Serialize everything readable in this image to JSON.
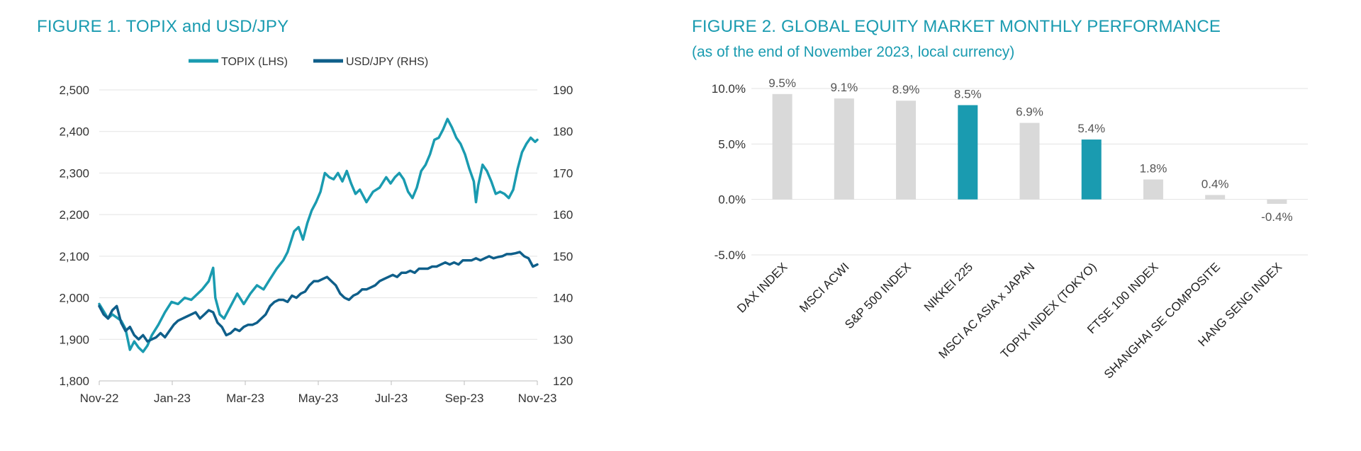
{
  "figure1": {
    "title": "FIGURE 1. TOPIX and USD/JPY",
    "chart_data": {
      "type": "line",
      "title": "FIGURE 1. TOPIX and USD/JPY",
      "x_labels": [
        "Nov-22",
        "Jan-23",
        "Mar-23",
        "May-23",
        "Jul-23",
        "Sep-23",
        "Nov-23"
      ],
      "y_left": {
        "label": "TOPIX (LHS)",
        "range": [
          1800,
          2500
        ],
        "ticks": [
          "1,800",
          "1,900",
          "2,000",
          "2,100",
          "2,200",
          "2,300",
          "2,400",
          "2,500"
        ]
      },
      "y_right": {
        "label": "USD/JPY (RHS)",
        "range": [
          120,
          190
        ],
        "ticks": [
          "120",
          "130",
          "140",
          "150",
          "160",
          "170",
          "180",
          "190"
        ]
      },
      "series": [
        {
          "name": "TOPIX (LHS)",
          "axis": "left",
          "color": "#1a9bb0",
          "points": [
            [
              0,
              1985
            ],
            [
              0.02,
              1950
            ],
            [
              0.03,
              1960
            ],
            [
              0.05,
              1945
            ],
            [
              0.06,
              1925
            ],
            [
              0.065,
              1900
            ],
            [
              0.07,
              1875
            ],
            [
              0.08,
              1895
            ],
            [
              0.09,
              1880
            ],
            [
              0.1,
              1870
            ],
            [
              0.11,
              1885
            ],
            [
              0.12,
              1910
            ],
            [
              0.135,
              1935
            ],
            [
              0.15,
              1965
            ],
            [
              0.165,
              1990
            ],
            [
              0.18,
              1985
            ],
            [
              0.195,
              2000
            ],
            [
              0.21,
              1995
            ],
            [
              0.22,
              2005
            ],
            [
              0.235,
              2020
            ],
            [
              0.25,
              2040
            ],
            [
              0.26,
              2072
            ],
            [
              0.265,
              2000
            ],
            [
              0.275,
              1960
            ],
            [
              0.285,
              1950
            ],
            [
              0.3,
              1980
            ],
            [
              0.315,
              2010
            ],
            [
              0.33,
              1985
            ],
            [
              0.345,
              2010
            ],
            [
              0.36,
              2030
            ],
            [
              0.375,
              2020
            ],
            [
              0.39,
              2045
            ],
            [
              0.405,
              2070
            ],
            [
              0.42,
              2090
            ],
            [
              0.43,
              2110
            ],
            [
              0.445,
              2160
            ],
            [
              0.455,
              2170
            ],
            [
              0.465,
              2140
            ],
            [
              0.475,
              2180
            ],
            [
              0.485,
              2210
            ],
            [
              0.495,
              2230
            ],
            [
              0.505,
              2255
            ],
            [
              0.515,
              2300
            ],
            [
              0.525,
              2290
            ],
            [
              0.535,
              2285
            ],
            [
              0.545,
              2300
            ],
            [
              0.555,
              2280
            ],
            [
              0.565,
              2305
            ],
            [
              0.575,
              2275
            ],
            [
              0.585,
              2250
            ],
            [
              0.595,
              2260
            ],
            [
              0.61,
              2230
            ],
            [
              0.625,
              2255
            ],
            [
              0.64,
              2265
            ],
            [
              0.655,
              2290
            ],
            [
              0.665,
              2275
            ],
            [
              0.675,
              2290
            ],
            [
              0.685,
              2300
            ],
            [
              0.695,
              2285
            ],
            [
              0.705,
              2255
            ],
            [
              0.715,
              2240
            ],
            [
              0.725,
              2265
            ],
            [
              0.735,
              2305
            ],
            [
              0.745,
              2320
            ],
            [
              0.755,
              2345
            ],
            [
              0.765,
              2380
            ],
            [
              0.775,
              2385
            ],
            [
              0.785,
              2405
            ],
            [
              0.795,
              2430
            ],
            [
              0.805,
              2410
            ],
            [
              0.815,
              2385
            ],
            [
              0.825,
              2370
            ],
            [
              0.835,
              2345
            ],
            [
              0.845,
              2310
            ],
            [
              0.855,
              2280
            ],
            [
              0.86,
              2230
            ],
            [
              0.865,
              2270
            ],
            [
              0.875,
              2320
            ],
            [
              0.885,
              2305
            ],
            [
              0.895,
              2280
            ],
            [
              0.905,
              2250
            ],
            [
              0.915,
              2255
            ],
            [
              0.925,
              2250
            ],
            [
              0.935,
              2240
            ],
            [
              0.945,
              2260
            ],
            [
              0.955,
              2310
            ],
            [
              0.965,
              2350
            ],
            [
              0.975,
              2370
            ],
            [
              0.985,
              2385
            ],
            [
              0.995,
              2375
            ],
            [
              1.0,
              2380
            ]
          ]
        },
        {
          "name": "USD/JPY (RHS)",
          "axis": "right",
          "color": "#0f5f8a",
          "points": [
            [
              0,
              138
            ],
            [
              0.01,
              136
            ],
            [
              0.02,
              135
            ],
            [
              0.03,
              137
            ],
            [
              0.04,
              138
            ],
            [
              0.05,
              134
            ],
            [
              0.06,
              132
            ],
            [
              0.07,
              133
            ],
            [
              0.08,
              131
            ],
            [
              0.09,
              130
            ],
            [
              0.1,
              131
            ],
            [
              0.11,
              129.5
            ],
            [
              0.12,
              130
            ],
            [
              0.13,
              130.5
            ],
            [
              0.14,
              131.5
            ],
            [
              0.15,
              130.5
            ],
            [
              0.16,
              132
            ],
            [
              0.17,
              133.5
            ],
            [
              0.18,
              134.5
            ],
            [
              0.19,
              135
            ],
            [
              0.2,
              135.5
            ],
            [
              0.21,
              136
            ],
            [
              0.22,
              136.5
            ],
            [
              0.23,
              135
            ],
            [
              0.24,
              136
            ],
            [
              0.25,
              137
            ],
            [
              0.26,
              136.5
            ],
            [
              0.27,
              134
            ],
            [
              0.28,
              133
            ],
            [
              0.29,
              131
            ],
            [
              0.3,
              131.5
            ],
            [
              0.31,
              132.5
            ],
            [
              0.32,
              132
            ],
            [
              0.33,
              133
            ],
            [
              0.34,
              133.5
            ],
            [
              0.35,
              133.5
            ],
            [
              0.36,
              134
            ],
            [
              0.37,
              135
            ],
            [
              0.38,
              136
            ],
            [
              0.39,
              138
            ],
            [
              0.4,
              139
            ],
            [
              0.41,
              139.5
            ],
            [
              0.42,
              139.5
            ],
            [
              0.43,
              139
            ],
            [
              0.44,
              140.5
            ],
            [
              0.45,
              140
            ],
            [
              0.46,
              141
            ],
            [
              0.47,
              141.5
            ],
            [
              0.48,
              143
            ],
            [
              0.49,
              144
            ],
            [
              0.5,
              144
            ],
            [
              0.51,
              144.5
            ],
            [
              0.52,
              145
            ],
            [
              0.53,
              144
            ],
            [
              0.54,
              143
            ],
            [
              0.55,
              141
            ],
            [
              0.56,
              140
            ],
            [
              0.57,
              139.5
            ],
            [
              0.58,
              140.5
            ],
            [
              0.59,
              141
            ],
            [
              0.6,
              142
            ],
            [
              0.61,
              142
            ],
            [
              0.62,
              142.5
            ],
            [
              0.63,
              143
            ],
            [
              0.64,
              144
            ],
            [
              0.65,
              144.5
            ],
            [
              0.66,
              145
            ],
            [
              0.67,
              145.5
            ],
            [
              0.68,
              145
            ],
            [
              0.69,
              146
            ],
            [
              0.7,
              146
            ],
            [
              0.71,
              146.5
            ],
            [
              0.72,
              146
            ],
            [
              0.73,
              147
            ],
            [
              0.74,
              147
            ],
            [
              0.75,
              147
            ],
            [
              0.76,
              147.5
            ],
            [
              0.77,
              147.5
            ],
            [
              0.78,
              148
            ],
            [
              0.79,
              148.5
            ],
            [
              0.8,
              148
            ],
            [
              0.81,
              148.5
            ],
            [
              0.82,
              148
            ],
            [
              0.83,
              149
            ],
            [
              0.84,
              149
            ],
            [
              0.85,
              149
            ],
            [
              0.86,
              149.5
            ],
            [
              0.87,
              149
            ],
            [
              0.88,
              149.5
            ],
            [
              0.89,
              150
            ],
            [
              0.9,
              149.5
            ],
            [
              0.91,
              149.8
            ],
            [
              0.92,
              150
            ],
            [
              0.93,
              150.5
            ],
            [
              0.94,
              150.5
            ],
            [
              0.95,
              150.7
            ],
            [
              0.96,
              151
            ],
            [
              0.97,
              150
            ],
            [
              0.98,
              149.5
            ],
            [
              0.99,
              147.5
            ],
            [
              1.0,
              148
            ]
          ]
        }
      ]
    }
  },
  "figure2": {
    "title": "FIGURE 2. GLOBAL EQUITY MARKET MONTHLY PERFORMANCE",
    "subtitle": "(as of the end of November 2023, local currency)",
    "chart_data": {
      "type": "bar",
      "title": "FIGURE 2. GLOBAL EQUITY MARKET MONTHLY PERFORMANCE",
      "subtitle": "(as of the end of November 2023, local currency)",
      "categories": [
        "DAX INDEX",
        "MSCI ACWI",
        "S&P 500 INDEX",
        "NIKKEI 225",
        "MSCI AC ASIA x JAPAN",
        "TOPIX INDEX (TOKYO)",
        "FTSE 100 INDEX",
        "SHANGHAI SE COMPOSITE",
        "HANG SENG INDEX"
      ],
      "values": [
        9.5,
        9.1,
        8.9,
        8.5,
        6.9,
        5.4,
        1.8,
        0.4,
        -0.4
      ],
      "value_labels": [
        "9.5%",
        "9.1%",
        "8.9%",
        "8.5%",
        "6.9%",
        "5.4%",
        "1.8%",
        "0.4%",
        "-0.4%"
      ],
      "highlight": [
        false,
        false,
        false,
        true,
        false,
        true,
        false,
        false,
        false
      ],
      "ylim": [
        -5,
        10
      ],
      "y_ticks": [
        "-5.0%",
        "0.0%",
        "5.0%",
        "10.0%"
      ],
      "colors": {
        "default": "#d9d9d9",
        "highlight": "#1a9bb0"
      }
    }
  }
}
